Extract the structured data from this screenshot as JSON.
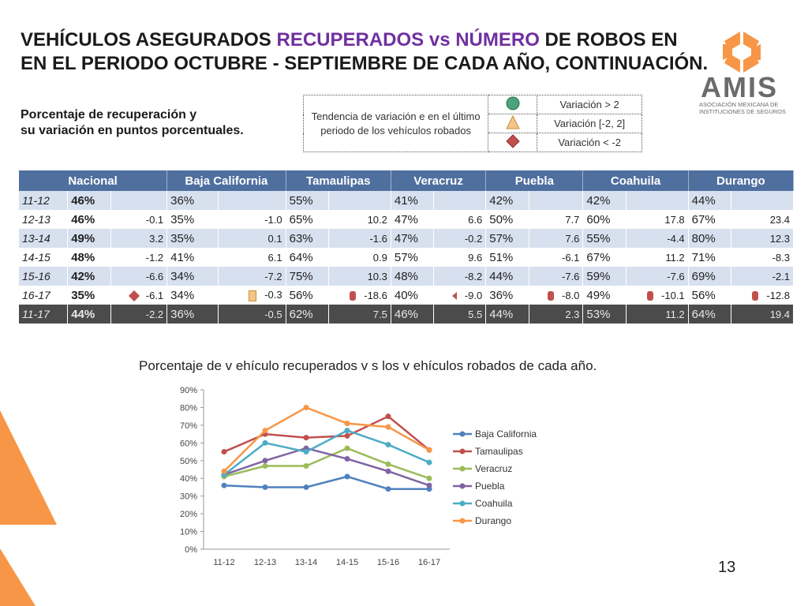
{
  "title": {
    "part1": "VEHÍCULOS ASEGURADOS ",
    "part2": "RECUPERADOS vs NÚMERO",
    "part3": " DE ROBOS EN",
    "line2": "EN EL PERIODO OCTUBRE - SEPTIEMBRE DE CADA AÑO, CONTINUACIÓN."
  },
  "logo": {
    "name": "AMIS",
    "subtitle": "ASOCIACIÓN MEXICANA DE INSTITUCIONES DE SEGUROS"
  },
  "subtitle": {
    "line1": "Porcentaje de recuperación y",
    "line2": "su variación en puntos porcentuales."
  },
  "legend": {
    "description": "Tendencia de variación e en el último periodo de los vehículos robados",
    "items": [
      {
        "label": "Variación > 2",
        "icon": "green-circle-icon",
        "color": "#4aa37a"
      },
      {
        "label": "Variación [-2, 2]",
        "icon": "yellow-triangle-icon",
        "color": "#f3c58a"
      },
      {
        "label": "Variación < -2",
        "icon": "red-diamond-icon",
        "color": "#c0504d"
      }
    ]
  },
  "table": {
    "headers": [
      "Nacional",
      "Baja California",
      "Tamaulipas",
      "Veracruz",
      "Puebla",
      "Coahuila",
      "Durango"
    ],
    "rows": [
      {
        "year": "11-12",
        "cells": [
          [
            "46%",
            ""
          ],
          [
            "36%",
            ""
          ],
          [
            "55%",
            ""
          ],
          [
            "41%",
            ""
          ],
          [
            "42%",
            ""
          ],
          [
            "42%",
            ""
          ],
          [
            "44%",
            ""
          ]
        ]
      },
      {
        "year": "12-13",
        "cells": [
          [
            "46%",
            "-0.1"
          ],
          [
            "35%",
            "-1.0"
          ],
          [
            "65%",
            "10.2"
          ],
          [
            "47%",
            "6.6"
          ],
          [
            "50%",
            "7.7"
          ],
          [
            "60%",
            "17.8"
          ],
          [
            "67%",
            "23.4"
          ]
        ]
      },
      {
        "year": "13-14",
        "cells": [
          [
            "49%",
            "3.2"
          ],
          [
            "35%",
            "0.1"
          ],
          [
            "63%",
            "-1.6"
          ],
          [
            "47%",
            "-0.2"
          ],
          [
            "57%",
            "7.6"
          ],
          [
            "55%",
            "-4.4"
          ],
          [
            "80%",
            "12.3"
          ]
        ]
      },
      {
        "year": "14-15",
        "cells": [
          [
            "48%",
            "-1.2"
          ],
          [
            "41%",
            "6.1"
          ],
          [
            "64%",
            "0.9"
          ],
          [
            "57%",
            "9.6"
          ],
          [
            "51%",
            "-6.1"
          ],
          [
            "67%",
            "11.2"
          ],
          [
            "71%",
            "-8.3"
          ]
        ]
      },
      {
        "year": "15-16",
        "cells": [
          [
            "42%",
            "-6.6"
          ],
          [
            "34%",
            "-7.2"
          ],
          [
            "75%",
            "10.3"
          ],
          [
            "48%",
            "-8.2"
          ],
          [
            "44%",
            "-7.6"
          ],
          [
            "59%",
            "-7.6"
          ],
          [
            "69%",
            "-2.1"
          ]
        ]
      },
      {
        "year": "16-17",
        "cells": [
          [
            "35%",
            "-6.1"
          ],
          [
            "34%",
            "-0.3"
          ],
          [
            "56%",
            "-18.6"
          ],
          [
            "40%",
            "-9.0"
          ],
          [
            "36%",
            "-8.0"
          ],
          [
            "49%",
            "-10.1"
          ],
          [
            "56%",
            "-12.8"
          ]
        ]
      }
    ],
    "total": {
      "year": "11-17",
      "cells": [
        [
          "44%",
          "-2.2"
        ],
        [
          "36%",
          "-0.5"
        ],
        [
          "62%",
          "7.5"
        ],
        [
          "46%",
          "5.5"
        ],
        [
          "44%",
          "2.3"
        ],
        [
          "53%",
          "11.2"
        ],
        [
          "64%",
          "19.4"
        ]
      ]
    }
  },
  "chart_title": "Porcentaje de v ehículo recuperados v s los v ehículos robados de cada año.",
  "page_number": "13",
  "chart_data": {
    "type": "line",
    "categories": [
      "11-12",
      "12-13",
      "13-14",
      "14-15",
      "15-16",
      "16-17"
    ],
    "yticks": [
      "0%",
      "10%",
      "20%",
      "30%",
      "40%",
      "50%",
      "60%",
      "70%",
      "80%",
      "90%"
    ],
    "ylim": [
      0,
      90
    ],
    "legend_position": "right",
    "series": [
      {
        "name": "Baja California",
        "color": "#4f81bd",
        "values": [
          36,
          35,
          35,
          41,
          34,
          34
        ]
      },
      {
        "name": "Tamaulipas",
        "color": "#c0504d",
        "values": [
          55,
          65,
          63,
          64,
          75,
          56
        ]
      },
      {
        "name": "Veracruz",
        "color": "#9bbb59",
        "values": [
          41,
          47,
          47,
          57,
          48,
          40
        ]
      },
      {
        "name": "Puebla",
        "color": "#8064a2",
        "values": [
          42,
          50,
          57,
          51,
          44,
          36
        ]
      },
      {
        "name": "Coahuila",
        "color": "#4bacc6",
        "values": [
          42,
          60,
          55,
          67,
          59,
          49
        ]
      },
      {
        "name": "Durango",
        "color": "#f79646",
        "values": [
          44,
          67,
          80,
          71,
          69,
          56
        ]
      }
    ]
  }
}
